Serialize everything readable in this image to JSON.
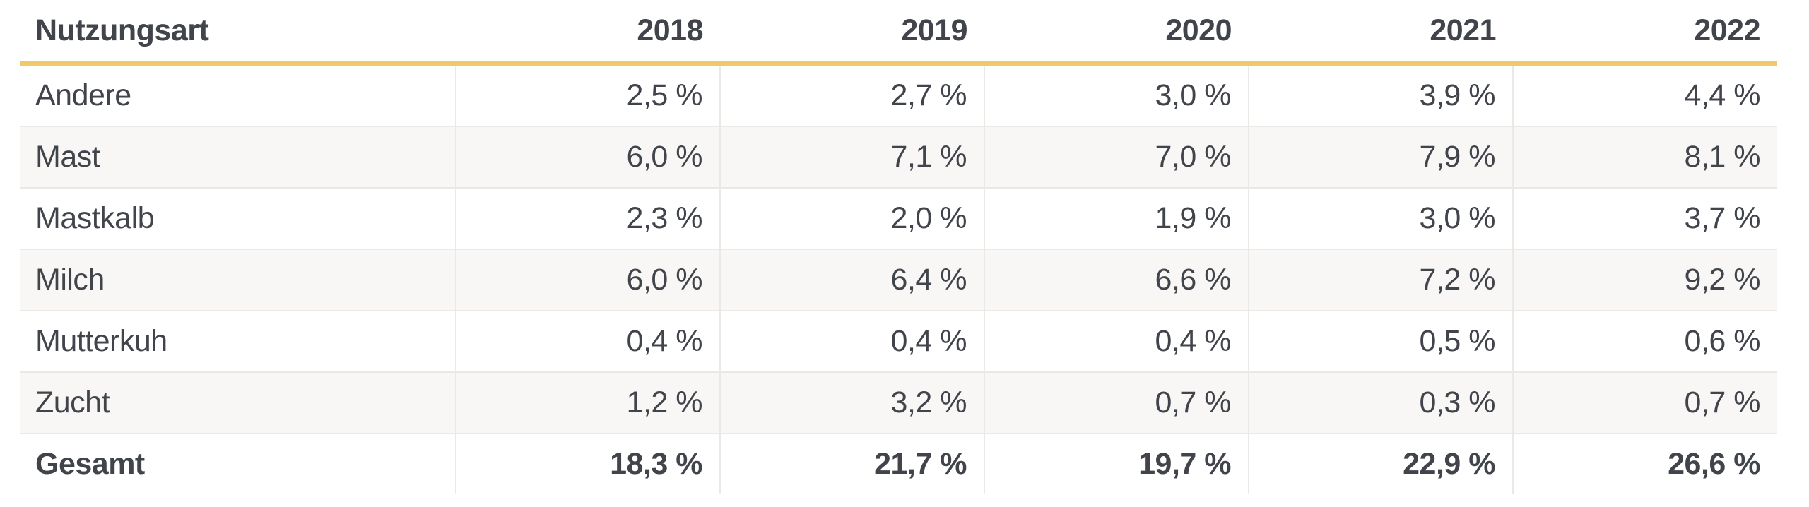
{
  "chart_data": {
    "type": "table",
    "columns": [
      "Nutzungsart",
      "2018",
      "2019",
      "2020",
      "2021",
      "2022"
    ],
    "rows": [
      {
        "label": "Andere",
        "values": [
          "2,5 %",
          "2,7 %",
          "3,0 %",
          "3,9 %",
          "4,4 %"
        ]
      },
      {
        "label": "Mast",
        "values": [
          "6,0 %",
          "7,1 %",
          "7,0 %",
          "7,9 %",
          "8,1 %"
        ]
      },
      {
        "label": "Mastkalb",
        "values": [
          "2,3 %",
          "2,0 %",
          "1,9 %",
          "3,0 %",
          "3,7 %"
        ]
      },
      {
        "label": "Milch",
        "values": [
          "6,0 %",
          "6,4 %",
          "6,6 %",
          "7,2 %",
          "9,2 %"
        ]
      },
      {
        "label": "Mutterkuh",
        "values": [
          "0,4 %",
          "0,4 %",
          "0,4 %",
          "0,5 %",
          "0,6 %"
        ]
      },
      {
        "label": "Zucht",
        "values": [
          "1,2 %",
          "3,2 %",
          "0,7 %",
          "0,3 %",
          "0,7 %"
        ]
      },
      {
        "label": "Gesamt",
        "values": [
          "18,3 %",
          "21,7 %",
          "19,7 %",
          "22,9 %",
          "26,6 %"
        ],
        "is_total": true
      }
    ],
    "numeric_values_percent": {
      "Andere": [
        2.5,
        2.7,
        3.0,
        3.9,
        4.4
      ],
      "Mast": [
        6.0,
        7.1,
        7.0,
        7.9,
        8.1
      ],
      "Mastkalb": [
        2.3,
        2.0,
        1.9,
        3.0,
        3.7
      ],
      "Milch": [
        6.0,
        6.4,
        6.6,
        7.2,
        9.2
      ],
      "Mutterkuh": [
        0.4,
        0.4,
        0.4,
        0.5,
        0.6
      ],
      "Zucht": [
        1.2,
        3.2,
        0.7,
        0.3,
        0.7
      ],
      "Gesamt": [
        18.3,
        21.7,
        19.7,
        22.9,
        26.6
      ]
    },
    "layout_hints": {
      "zebra_striping": true,
      "header_rule": "gold underline below header row",
      "value_alignment": "right",
      "total_row_bold": true
    }
  },
  "colors": {
    "accent_line": "#f0c969",
    "row_alt_background": "#f8f7f5",
    "cell_border": "#eae9e6",
    "text": "#41454b"
  }
}
